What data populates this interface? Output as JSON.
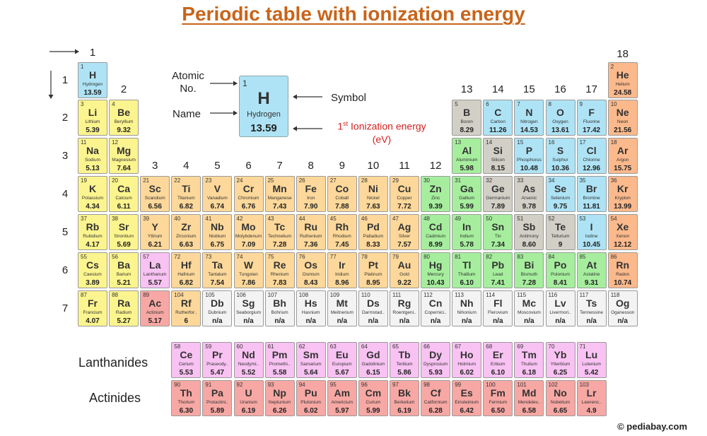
{
  "title": "Periodic table with ionization energy",
  "group_labels": [
    "1",
    "2",
    "3",
    "4",
    "5",
    "6",
    "7",
    "8",
    "9",
    "10",
    "11",
    "12",
    "13",
    "14",
    "15",
    "16",
    "17",
    "18"
  ],
  "period_labels": [
    "1",
    "2",
    "3",
    "4",
    "5",
    "6",
    "7"
  ],
  "legend": {
    "atomic_no_label": "Atomic No.",
    "name_label": "Name",
    "symbol_label": "Symbol",
    "ie_label_prefix": "1",
    "ie_label_sup": "st",
    "ie_label_rest": " Ionization energy",
    "ie_label_unit": "(eV)",
    "sample_number": "1",
    "sample_symbol": "H",
    "sample_name": "Hydrogen",
    "sample_ie": "13.59"
  },
  "series_labels": {
    "lanthanides": "Lanthanides",
    "actinides": "Actinides"
  },
  "credit": "© pediabay.com",
  "colors": {
    "blue": "#aee3f5",
    "yellow": "#fcf48e",
    "orange": "#fdd89a",
    "peach": "#fcb98c",
    "pink": "#f8c2f2",
    "gray": "#d2cfc6",
    "green": "#a6ee9e",
    "white": "#f3f3f3",
    "red": "#f7a8a4",
    "title": "#c8641a",
    "ie_label": "#d42020"
  },
  "elements": [
    [
      "1",
      "H",
      "Hydrogen",
      "13.59",
      "blue"
    ],
    [
      "2",
      "He",
      "Helium",
      "24.58",
      "peach"
    ],
    [
      "3",
      "Li",
      "Lithium",
      "5.39",
      "yellow"
    ],
    [
      "4",
      "Be",
      "Beryllium",
      "9.32",
      "yellow"
    ],
    [
      "5",
      "B",
      "Boron",
      "8.29",
      "gray"
    ],
    [
      "6",
      "C",
      "Carbon",
      "11.26",
      "blue"
    ],
    [
      "7",
      "N",
      "Nitrogen",
      "14.53",
      "blue"
    ],
    [
      "8",
      "O",
      "Oxygen",
      "13.61",
      "blue"
    ],
    [
      "9",
      "F",
      "Fluorine",
      "17.42",
      "blue"
    ],
    [
      "10",
      "Ne",
      "Neon",
      "21.56",
      "peach"
    ],
    [
      "11",
      "Na",
      "Sodium",
      "5.13",
      "yellow"
    ],
    [
      "12",
      "Mg",
      "Magnesium",
      "7.64",
      "yellow"
    ],
    [
      "13",
      "Al",
      "Aluminium",
      "5.98",
      "green"
    ],
    [
      "14",
      "Si",
      "Silicon",
      "8.15",
      "gray"
    ],
    [
      "15",
      "P",
      "Phosphorus",
      "10.48",
      "blue"
    ],
    [
      "16",
      "S",
      "Sulphur",
      "10.36",
      "blue"
    ],
    [
      "17",
      "Cl",
      "Chlorine",
      "12.96",
      "blue"
    ],
    [
      "18",
      "Ar",
      "Argon",
      "15.75",
      "peach"
    ],
    [
      "19",
      "K",
      "Potassium",
      "4.34",
      "yellow"
    ],
    [
      "20",
      "Ca",
      "Calcium",
      "6.11",
      "yellow"
    ],
    [
      "21",
      "Sc",
      "Scandium",
      "6.56",
      "orange"
    ],
    [
      "22",
      "Ti",
      "Titanium",
      "6.82",
      "orange"
    ],
    [
      "23",
      "V",
      "Vanadium",
      "6.74",
      "orange"
    ],
    [
      "24",
      "Cr",
      "Chromium",
      "6.76",
      "orange"
    ],
    [
      "25",
      "Mn",
      "Manganese",
      "7.43",
      "orange"
    ],
    [
      "26",
      "Fe",
      "Iron",
      "7.90",
      "orange"
    ],
    [
      "27",
      "Co",
      "Cobalt",
      "7.88",
      "orange"
    ],
    [
      "28",
      "Ni",
      "Nickel",
      "7.63",
      "orange"
    ],
    [
      "29",
      "Cu",
      "Copper",
      "7.72",
      "orange"
    ],
    [
      "30",
      "Zn",
      "Zinc",
      "9.39",
      "green"
    ],
    [
      "31",
      "Ga",
      "Gallium",
      "5.99",
      "green"
    ],
    [
      "32",
      "Ge",
      "Germanium",
      "7.89",
      "gray"
    ],
    [
      "33",
      "As",
      "Arsenic",
      "9.78",
      "gray"
    ],
    [
      "34",
      "Se",
      "Selenium",
      "9.75",
      "blue"
    ],
    [
      "35",
      "Br",
      "Bromine",
      "11.81",
      "blue"
    ],
    [
      "36",
      "Kr",
      "Krypton",
      "13.99",
      "peach"
    ],
    [
      "37",
      "Rb",
      "Rubidium",
      "4.17",
      "yellow"
    ],
    [
      "38",
      "Sr",
      "Strontium",
      "5.69",
      "yellow"
    ],
    [
      "39",
      "Y",
      "Yttrium",
      "6.21",
      "orange"
    ],
    [
      "40",
      "Zr",
      "Zirconium",
      "6.63",
      "orange"
    ],
    [
      "41",
      "Nb",
      "Niobium",
      "6.75",
      "orange"
    ],
    [
      "42",
      "Mo",
      "Molybdenum",
      "7.09",
      "orange"
    ],
    [
      "43",
      "Tc",
      "Technetium",
      "7.28",
      "orange"
    ],
    [
      "44",
      "Ru",
      "Ruthenium",
      "7.36",
      "orange"
    ],
    [
      "45",
      "Rh",
      "Rhodium",
      "7.45",
      "orange"
    ],
    [
      "46",
      "Pd",
      "Palladium",
      "8.33",
      "orange"
    ],
    [
      "47",
      "Ag",
      "Silver",
      "7.57",
      "orange"
    ],
    [
      "48",
      "Cd",
      "Cadmium",
      "8.99",
      "green"
    ],
    [
      "49",
      "In",
      "Indium",
      "5.78",
      "green"
    ],
    [
      "50",
      "Sn",
      "Tin",
      "7.34",
      "green"
    ],
    [
      "51",
      "Sb",
      "Antimony",
      "8.60",
      "gray"
    ],
    [
      "52",
      "Te",
      "Tellurium",
      "9",
      "gray"
    ],
    [
      "53",
      "I",
      "Iodine",
      "10.45",
      "blue"
    ],
    [
      "54",
      "Xe",
      "Xenon",
      "12.12",
      "peach"
    ],
    [
      "55",
      "Cs",
      "Caesium",
      "3.89",
      "yellow"
    ],
    [
      "56",
      "Ba",
      "Barium",
      "5.21",
      "yellow"
    ],
    [
      "57",
      "La",
      "Lanthanum",
      "5.57",
      "pink"
    ],
    [
      "72",
      "Hf",
      "Hafnium",
      "6.82",
      "orange"
    ],
    [
      "73",
      "Ta",
      "Tantalum",
      "7.54",
      "orange"
    ],
    [
      "74",
      "W",
      "Tungsten",
      "7.86",
      "orange"
    ],
    [
      "75",
      "Re",
      "Rhenium",
      "7.83",
      "orange"
    ],
    [
      "76",
      "Os",
      "Osmium",
      "8.43",
      "orange"
    ],
    [
      "77",
      "Ir",
      "Iridium",
      "8.96",
      "orange"
    ],
    [
      "78",
      "Pt",
      "Platinum",
      "8.95",
      "orange"
    ],
    [
      "79",
      "Au",
      "Gold",
      "9.22",
      "orange"
    ],
    [
      "80",
      "Hg",
      "Mercury",
      "10.43",
      "green"
    ],
    [
      "81",
      "Tl",
      "Thallium",
      "6.10",
      "green"
    ],
    [
      "82",
      "Pb",
      "Lead",
      "7.41",
      "green"
    ],
    [
      "83",
      "Bi",
      "Bismuth",
      "7.28",
      "green"
    ],
    [
      "84",
      "Po",
      "Polonium",
      "8.41",
      "green"
    ],
    [
      "85",
      "At",
      "Astatine",
      "9.31",
      "green"
    ],
    [
      "86",
      "Rn",
      "Radon",
      "10.74",
      "peach"
    ],
    [
      "87",
      "Fr",
      "Francium",
      "4.07",
      "yellow"
    ],
    [
      "88",
      "Ra",
      "Radium",
      "5.27",
      "yellow"
    ],
    [
      "89",
      "Ac",
      "Actinium",
      "5.17",
      "red"
    ],
    [
      "104",
      "Rf",
      "Rutherfor..",
      "6",
      "orange"
    ],
    [
      "105",
      "Db",
      "Dubnium",
      "n/a",
      "white"
    ],
    [
      "106",
      "Sg",
      "Seaborgium",
      "n/a",
      "white"
    ],
    [
      "107",
      "Bh",
      "Bohrium",
      "n/a",
      "white"
    ],
    [
      "108",
      "Hs",
      "Hasnium",
      "n/a",
      "white"
    ],
    [
      "109",
      "Mt",
      "Meitnerium",
      "n/a",
      "white"
    ],
    [
      "110",
      "Ds",
      "Darmstad..",
      "n/a",
      "white"
    ],
    [
      "111",
      "Rg",
      "Roentgeni..",
      "n/a",
      "white"
    ],
    [
      "112",
      "Cn",
      "Copernici..",
      "n/a",
      "white"
    ],
    [
      "113",
      "Nh",
      "Nihonium",
      "n/a",
      "white"
    ],
    [
      "114",
      "Fl",
      "Flerovium",
      "n/a",
      "white"
    ],
    [
      "115",
      "Mc",
      "Moscovium",
      "n/a",
      "white"
    ],
    [
      "116",
      "Lv",
      "Livermori..",
      "n/a",
      "white"
    ],
    [
      "117",
      "Ts",
      "Tennessine",
      "n/a",
      "white"
    ],
    [
      "118",
      "Og",
      "Oganesson",
      "n/a",
      "white"
    ],
    [
      "58",
      "Ce",
      "Cerium",
      "5.53",
      "pink"
    ],
    [
      "59",
      "Pr",
      "Praseody..",
      "5.47",
      "pink"
    ],
    [
      "60",
      "Nd",
      "Neodymi..",
      "5.52",
      "pink"
    ],
    [
      "61",
      "Pm",
      "Promethi..",
      "5.58",
      "pink"
    ],
    [
      "62",
      "Sm",
      "Samarium",
      "5.64",
      "pink"
    ],
    [
      "63",
      "Eu",
      "Europium",
      "5.67",
      "pink"
    ],
    [
      "64",
      "Gd",
      "Gadolinium",
      "6.15",
      "pink"
    ],
    [
      "65",
      "Tb",
      "Terbium",
      "5.86",
      "pink"
    ],
    [
      "66",
      "Dy",
      "Dysprosium",
      "5.93",
      "pink"
    ],
    [
      "67",
      "Ho",
      "Holmium",
      "6.02",
      "pink"
    ],
    [
      "68",
      "Er",
      "Erbium",
      "6.10",
      "pink"
    ],
    [
      "69",
      "Tm",
      "Thulium",
      "6.18",
      "pink"
    ],
    [
      "70",
      "Yb",
      "Ytterbium",
      "6.25",
      "pink"
    ],
    [
      "71",
      "Lu",
      "Lutenium",
      "5.42",
      "pink"
    ],
    [
      "90",
      "Th",
      "Thorium",
      "6.30",
      "red"
    ],
    [
      "91",
      "Pa",
      "Protactini..",
      "5.89",
      "red"
    ],
    [
      "92",
      "U",
      "Uranium",
      "6.19",
      "red"
    ],
    [
      "93",
      "Np",
      "Neptunium",
      "6.26",
      "red"
    ],
    [
      "94",
      "Pu",
      "Plutonium",
      "6.02",
      "red"
    ],
    [
      "95",
      "Am",
      "Americium",
      "5.97",
      "red"
    ],
    [
      "96",
      "Cm",
      "Curium",
      "5.99",
      "red"
    ],
    [
      "97",
      "Bk",
      "Berkelium",
      "6.19",
      "red"
    ],
    [
      "98",
      "Cf",
      "Californium",
      "6.28",
      "red"
    ],
    [
      "99",
      "Es",
      "Einsteinium",
      "6.42",
      "red"
    ],
    [
      "100",
      "Fm",
      "Fermium",
      "6.50",
      "red"
    ],
    [
      "101",
      "Md",
      "Mendelev..",
      "6.58",
      "red"
    ],
    [
      "102",
      "No",
      "Nobelium",
      "6.65",
      "red"
    ],
    [
      "103",
      "Lr",
      "Lawrenc..",
      "4.9",
      "red"
    ]
  ]
}
